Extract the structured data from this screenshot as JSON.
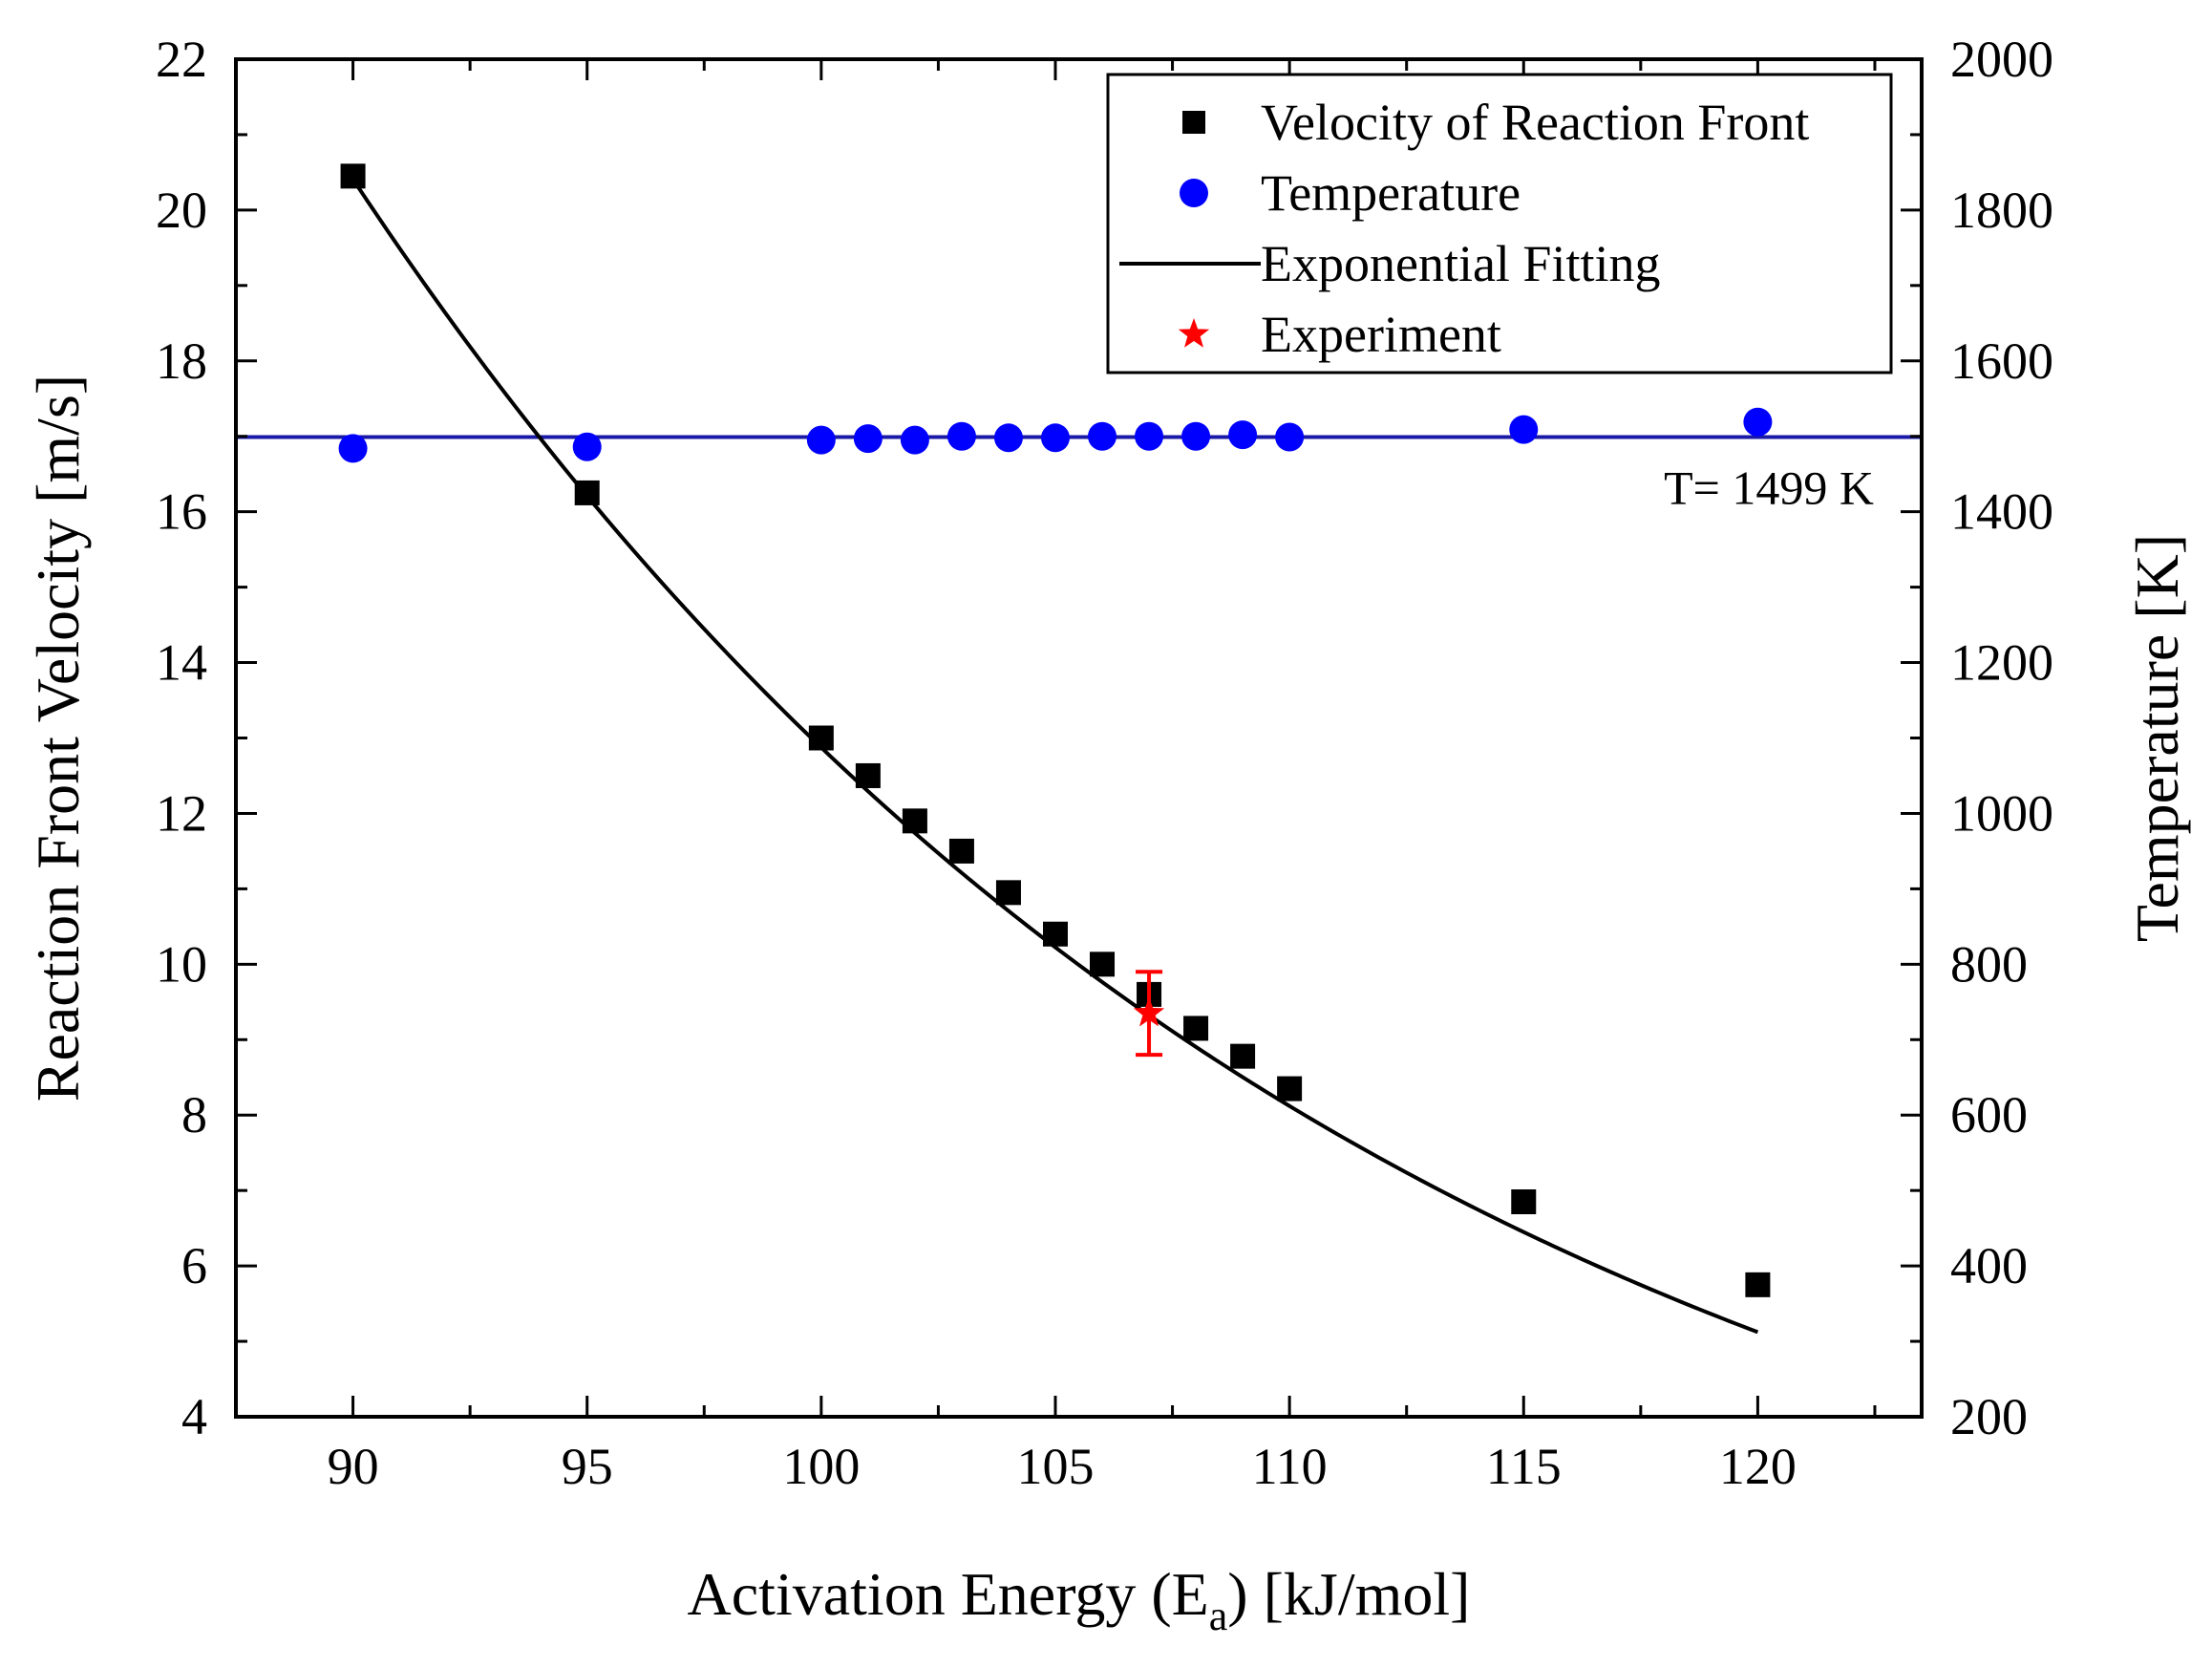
{
  "chart_data": {
    "type": "scatter",
    "title": "",
    "xlabel": "Activation Energy (E",
    "xlabel_sub": "a",
    "xlabel_tail": ") [kJ/mol]",
    "ylabel": "Reaction Front Velocity [m/s]",
    "y2label": "Temperature [K]",
    "xlim": [
      87.5,
      123.5
    ],
    "ylim": [
      4,
      22
    ],
    "y2lim": [
      200,
      2000
    ],
    "x_ticks": [
      90,
      95,
      100,
      105,
      110,
      115,
      120
    ],
    "y_ticks": [
      4,
      6,
      8,
      10,
      12,
      14,
      16,
      18,
      20,
      22
    ],
    "y2_ticks": [
      200,
      400,
      600,
      800,
      1000,
      1200,
      1400,
      1600,
      1800,
      2000
    ],
    "legend_position": "top-right",
    "series": [
      {
        "name": "Velocity of Reaction Front",
        "axis": "left",
        "marker": "square",
        "color": "#000000",
        "x": [
          90,
          95,
          100,
          101,
          102,
          103,
          104,
          105,
          106,
          107,
          108,
          109,
          110,
          115,
          120
        ],
        "values": [
          20.45,
          16.25,
          13.0,
          12.5,
          11.9,
          11.5,
          10.95,
          10.4,
          10.0,
          9.6,
          9.15,
          8.78,
          8.35,
          6.85,
          5.75
        ]
      },
      {
        "name": "Temperature",
        "axis": "right",
        "marker": "circle",
        "color": "#0000ff",
        "x": [
          90,
          95,
          100,
          101,
          102,
          103,
          104,
          105,
          106,
          107,
          108,
          109,
          110,
          115,
          120
        ],
        "values": [
          1484,
          1486,
          1495,
          1497,
          1495,
          1500,
          1498,
          1498,
          1500,
          1500,
          1500,
          1502,
          1499,
          1509,
          1519
        ]
      },
      {
        "name": "Exponential Fitting",
        "axis": "left",
        "type": "line",
        "color": "#000000",
        "model": "A*exp(-k*x)",
        "params": {
          "A": 1291.0,
          "k": 0.04608
        },
        "x_range": [
          90,
          120
        ]
      },
      {
        "name": "Experiment",
        "axis": "left",
        "marker": "star",
        "color": "#ff0000",
        "x": [
          107
        ],
        "values": [
          9.35
        ],
        "error": [
          0.55
        ]
      }
    ],
    "reference_line": {
      "axis": "right",
      "value": 1499,
      "color": "#1a1aa6",
      "label": "T= 1499 K"
    }
  }
}
